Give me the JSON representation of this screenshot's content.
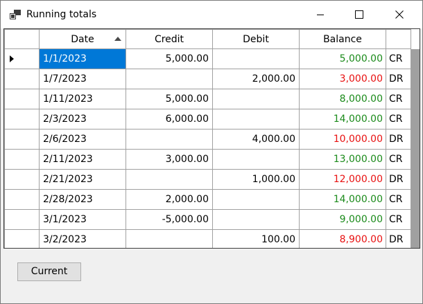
{
  "window": {
    "title": "Running totals",
    "icon": "app-window-icon",
    "controls": [
      "minimize-icon",
      "maximize-icon",
      "close-icon"
    ]
  },
  "grid": {
    "columns": [
      "Date",
      "Credit",
      "Debit",
      "Balance",
      ""
    ],
    "sort": {
      "column": "Date",
      "direction": "ascending"
    },
    "selected_row": 0,
    "rows": [
      {
        "date": "1/1/2023",
        "credit": "5,000.00",
        "debit": "",
        "balance": "5,000.00",
        "type": "CR"
      },
      {
        "date": "1/7/2023",
        "credit": "",
        "debit": "2,000.00",
        "balance": "3,000.00",
        "type": "DR"
      },
      {
        "date": "1/11/2023",
        "credit": "5,000.00",
        "debit": "",
        "balance": "8,000.00",
        "type": "CR"
      },
      {
        "date": "2/3/2023",
        "credit": "6,000.00",
        "debit": "",
        "balance": "14,000.00",
        "type": "CR"
      },
      {
        "date": "2/6/2023",
        "credit": "",
        "debit": "4,000.00",
        "balance": "10,000.00",
        "type": "DR"
      },
      {
        "date": "2/11/2023",
        "credit": "3,000.00",
        "debit": "",
        "balance": "13,000.00",
        "type": "CR"
      },
      {
        "date": "2/21/2023",
        "credit": "",
        "debit": "1,000.00",
        "balance": "12,000.00",
        "type": "DR"
      },
      {
        "date": "2/28/2023",
        "credit": "2,000.00",
        "debit": "",
        "balance": "14,000.00",
        "type": "CR"
      },
      {
        "date": "3/1/2023",
        "credit": "-5,000.00",
        "debit": "",
        "balance": "9,000.00",
        "type": "CR"
      },
      {
        "date": "3/2/2023",
        "credit": "",
        "debit": "100.00",
        "balance": "8,900.00",
        "type": "DR"
      }
    ]
  },
  "colors": {
    "credit_balance": "#1a8a1a",
    "debit_balance": "#e81010",
    "selection": "#0078d7"
  },
  "buttons": {
    "current_label": "Current"
  }
}
